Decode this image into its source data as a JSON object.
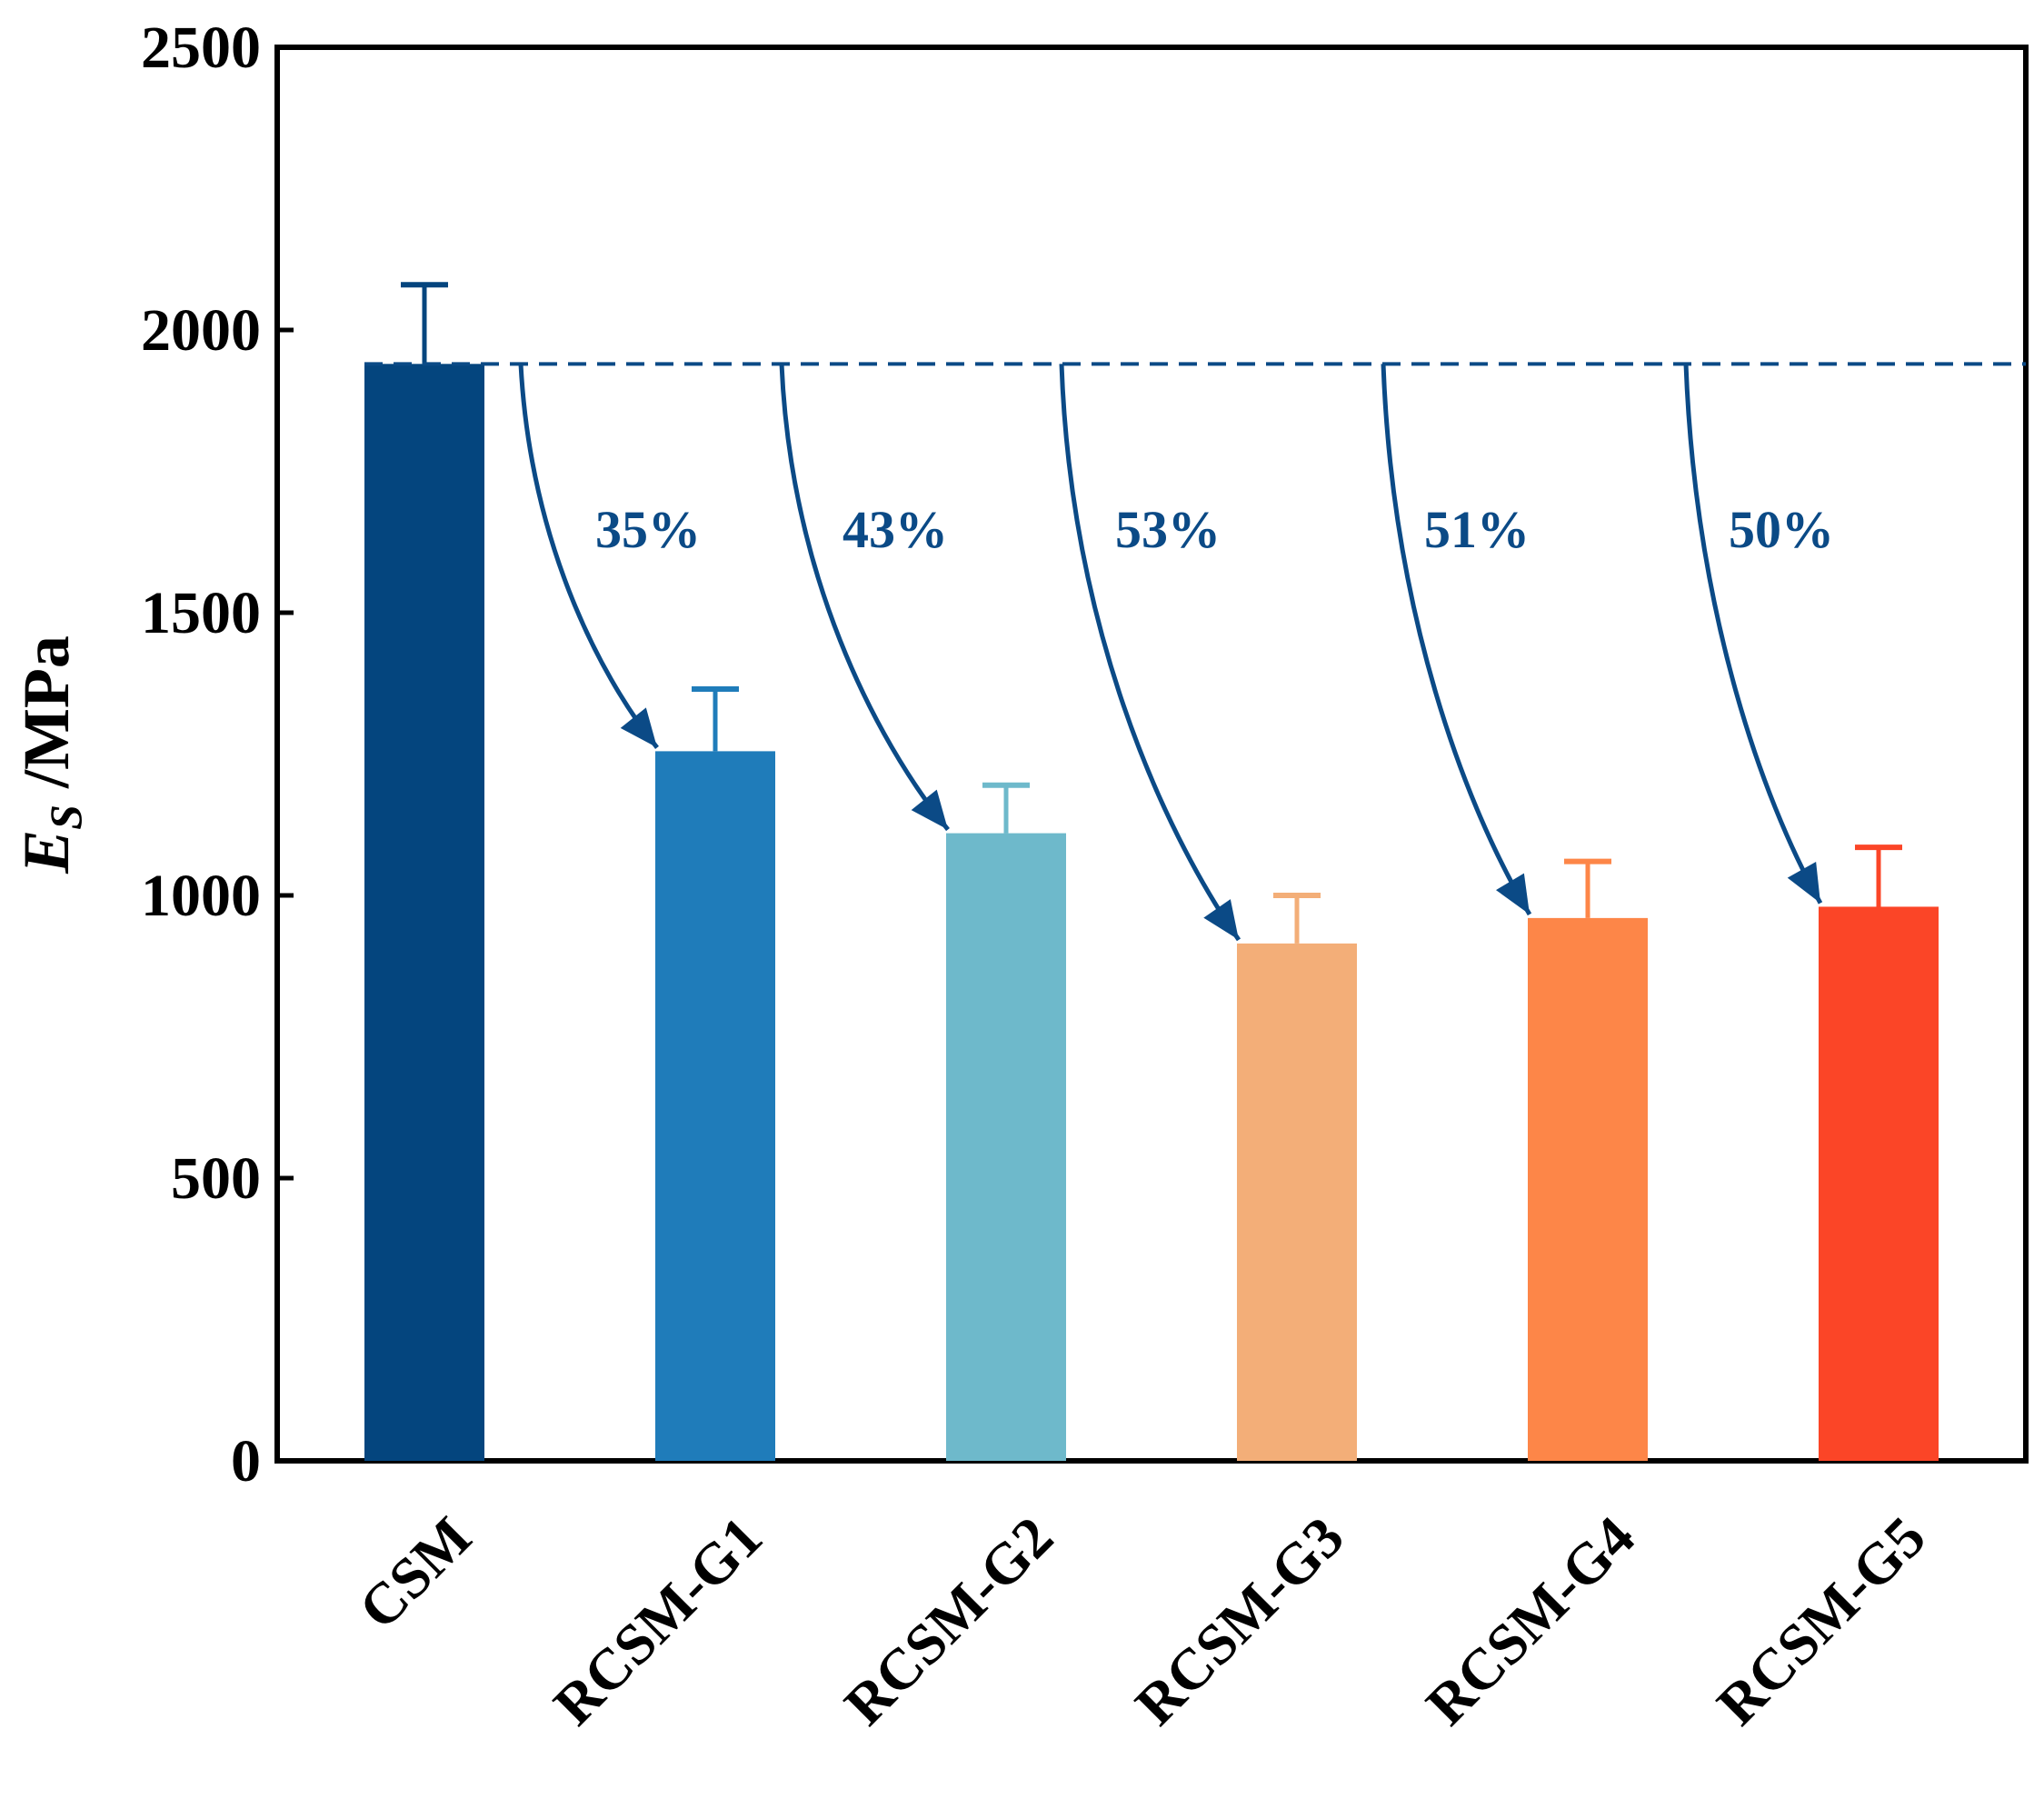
{
  "chart_data": {
    "type": "bar",
    "title": "",
    "xlabel": "",
    "ylabel": {
      "main": "E",
      "subscript": "S",
      "unit": " /MPa"
    },
    "ylim": [
      0,
      2500
    ],
    "yticks": [
      0,
      500,
      1000,
      1500,
      2000,
      2500
    ],
    "grid": false,
    "categories": [
      "CSM",
      "RCSM-G1",
      "RCSM-G2",
      "RCSM-G3",
      "RCSM-G4",
      "RCSM-G5"
    ],
    "values": [
      1940,
      1255,
      1110,
      915,
      960,
      980
    ],
    "error_upper": [
      2080,
      1365,
      1195,
      1000,
      1060,
      1085
    ],
    "colors": [
      "#04457e",
      "#1f7cba",
      "#6eb9cb",
      "#f3ae78",
      "#fd8648",
      "#fb4527"
    ],
    "reference_line": {
      "value": 1940,
      "style": "dashed",
      "color": "#0b4a86"
    },
    "annotations": [
      {
        "text": "35%",
        "target": "RCSM-G1"
      },
      {
        "text": "43%",
        "target": "RCSM-G2"
      },
      {
        "text": "53%",
        "target": "RCSM-G3"
      },
      {
        "text": "51%",
        "target": "RCSM-G4"
      },
      {
        "text": "50%",
        "target": "RCSM-G5"
      }
    ],
    "annotation_color": "#0b4a86"
  }
}
